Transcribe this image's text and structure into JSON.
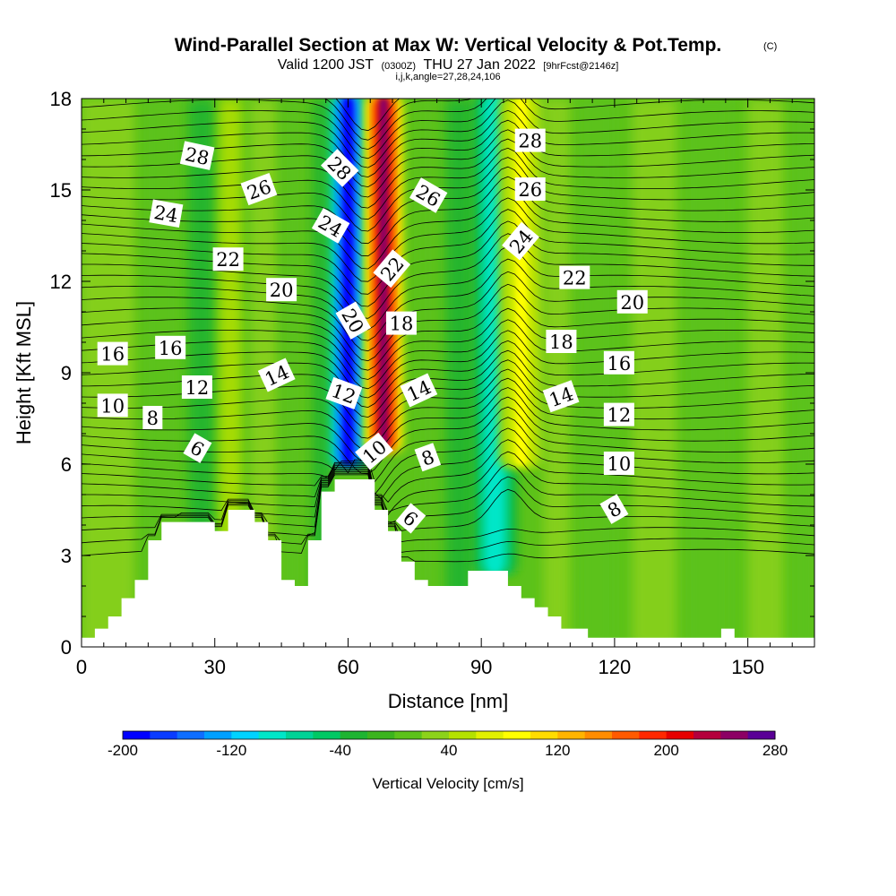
{
  "header": {
    "title": "Wind-Parallel Section at Max W: Vertical Velocity & Pot.Temp.",
    "copyright": "(C)",
    "valid_prefix": "Valid 1200 JST",
    "valid_z": "(0300Z)",
    "valid_date": "THU 27 Jan 2022",
    "forecast": "[9hrFcst@2146z]",
    "indices": "i,j,k,angle=27,28,24,106"
  },
  "colors": {
    "background_field": "#5cc21a",
    "terrain": "#ffffff",
    "contour": "#000000"
  },
  "chart_data": {
    "type": "heatmap",
    "xlabel": "Distance [nm]",
    "ylabel": "Height [Kft MSL]",
    "xlim": [
      0,
      165
    ],
    "ylim": [
      0,
      18
    ],
    "x_ticks": [
      0,
      30,
      60,
      90,
      120,
      150
    ],
    "y_ticks": [
      0,
      3,
      6,
      9,
      12,
      15,
      18
    ],
    "colorbar": {
      "title": "Vertical Velocity [cm/s]",
      "min": -200,
      "max": 280,
      "step": 20,
      "tick_values": [
        -200,
        -120,
        -40,
        40,
        120,
        200,
        280
      ],
      "tick_labels": [
        "-200",
        "-120",
        "-40",
        "40",
        "120",
        "200",
        "280"
      ],
      "colors": [
        "#0000ff",
        "#0a3cff",
        "#0f6eff",
        "#00a0ff",
        "#00d2ff",
        "#00e6c8",
        "#00d296",
        "#00c864",
        "#1eb432",
        "#3cb41e",
        "#5cc21a",
        "#8cd21a",
        "#b4e100",
        "#e1f000",
        "#ffff00",
        "#ffdc00",
        "#ffb400",
        "#ff8c00",
        "#ff5a00",
        "#ff2800",
        "#e60000",
        "#b4003c",
        "#8c0064",
        "#5a0096"
      ]
    },
    "terrain_profile": {
      "description": "terrain height (kft) vs distance (nm)",
      "x": [
        0,
        3,
        6,
        9,
        12,
        15,
        18,
        21,
        24,
        27,
        30,
        33,
        36,
        39,
        42,
        45,
        48,
        51,
        54,
        57,
        60,
        63,
        66,
        69,
        72,
        75,
        78,
        81,
        84,
        87,
        90,
        93,
        96,
        99,
        102,
        105,
        108,
        111,
        114,
        117,
        120,
        123,
        126,
        129,
        132,
        135,
        138,
        141,
        144,
        147,
        150,
        153,
        156,
        159,
        162,
        165
      ],
      "y": [
        0.3,
        0.6,
        1.0,
        1.6,
        2.2,
        3.5,
        4.1,
        4.1,
        4.1,
        4.1,
        3.8,
        4.5,
        4.5,
        4.1,
        3.5,
        2.2,
        2.0,
        3.5,
        5.1,
        5.5,
        5.5,
        5.5,
        4.5,
        3.8,
        2.8,
        2.2,
        2.0,
        2.0,
        2.0,
        2.5,
        2.5,
        2.5,
        2.0,
        1.6,
        1.3,
        1.0,
        0.6,
        0.6,
        0.3,
        0.3,
        0.3,
        0.3,
        0.3,
        0.3,
        0.3,
        0.3,
        0.3,
        0.3,
        0.6,
        0.3,
        0.3,
        0.3,
        0.3,
        0.3,
        0.3,
        0.3
      ]
    },
    "vertical_velocity_features": [
      {
        "name": "downdraft core",
        "x_center": 60,
        "x_width": 5,
        "y_bottom": 6,
        "y_top": 18,
        "value": -200
      },
      {
        "name": "updraft core",
        "x_center": 68,
        "x_width": 5,
        "y_bottom": 6.5,
        "y_top": 18,
        "value": 240
      },
      {
        "name": "downdraft secondary",
        "x_center": 93,
        "x_width": 6,
        "y_bottom": 2.5,
        "y_top": 18,
        "value": -100
      },
      {
        "name": "updraft secondary",
        "x_center": 99,
        "x_width": 6,
        "y_bottom": 6,
        "y_top": 18,
        "value": 80
      }
    ],
    "theta_contour_labels": [
      {
        "text": "28",
        "x": 26,
        "y": 16.1,
        "rot": 12
      },
      {
        "text": "26",
        "x": 40,
        "y": 15.0,
        "rot": -20
      },
      {
        "text": "24",
        "x": 19,
        "y": 14.2,
        "rot": 10
      },
      {
        "text": "22",
        "x": 33,
        "y": 12.7,
        "rot": 0
      },
      {
        "text": "20",
        "x": 45,
        "y": 11.7,
        "rot": 0
      },
      {
        "text": "16",
        "x": 7,
        "y": 9.6,
        "rot": 0
      },
      {
        "text": "16",
        "x": 20,
        "y": 9.8,
        "rot": 0
      },
      {
        "text": "14",
        "x": 44,
        "y": 8.9,
        "rot": -25
      },
      {
        "text": "12",
        "x": 26,
        "y": 8.5,
        "rot": 0
      },
      {
        "text": "10",
        "x": 7,
        "y": 7.9,
        "rot": 0
      },
      {
        "text": "8",
        "x": 16,
        "y": 7.5,
        "rot": 0
      },
      {
        "text": "6",
        "x": 26,
        "y": 6.5,
        "rot": 30
      },
      {
        "text": "28",
        "x": 58,
        "y": 15.7,
        "rot": 45
      },
      {
        "text": "24",
        "x": 56,
        "y": 13.8,
        "rot": 30
      },
      {
        "text": "26",
        "x": 78,
        "y": 14.8,
        "rot": 30
      },
      {
        "text": "22",
        "x": 70,
        "y": 12.4,
        "rot": -50
      },
      {
        "text": "20",
        "x": 61,
        "y": 10.7,
        "rot": 60
      },
      {
        "text": "18",
        "x": 72,
        "y": 10.6,
        "rot": 0
      },
      {
        "text": "12",
        "x": 59,
        "y": 8.3,
        "rot": 20
      },
      {
        "text": "14",
        "x": 76,
        "y": 8.4,
        "rot": -25
      },
      {
        "text": "10",
        "x": 66,
        "y": 6.4,
        "rot": -40
      },
      {
        "text": "8",
        "x": 78,
        "y": 6.2,
        "rot": -20
      },
      {
        "text": "6",
        "x": 74,
        "y": 4.2,
        "rot": 40
      },
      {
        "text": "28",
        "x": 101,
        "y": 16.6,
        "rot": 0
      },
      {
        "text": "26",
        "x": 101,
        "y": 15.0,
        "rot": 0
      },
      {
        "text": "24",
        "x": 99,
        "y": 13.3,
        "rot": -50
      },
      {
        "text": "22",
        "x": 111,
        "y": 12.1,
        "rot": 0
      },
      {
        "text": "20",
        "x": 124,
        "y": 11.3,
        "rot": 0
      },
      {
        "text": "18",
        "x": 108,
        "y": 10.0,
        "rot": 0
      },
      {
        "text": "16",
        "x": 121,
        "y": 9.3,
        "rot": 0
      },
      {
        "text": "14",
        "x": 108,
        "y": 8.2,
        "rot": -20
      },
      {
        "text": "12",
        "x": 121,
        "y": 7.6,
        "rot": 0
      },
      {
        "text": "10",
        "x": 121,
        "y": 6.0,
        "rot": 0
      },
      {
        "text": "8",
        "x": 120,
        "y": 4.5,
        "rot": -30
      }
    ]
  }
}
